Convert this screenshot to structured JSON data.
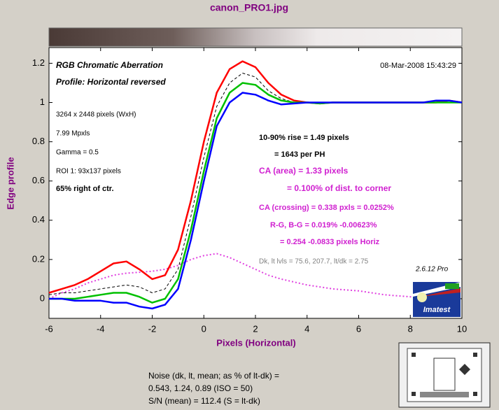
{
  "chart_data": {
    "type": "line",
    "title": "canon_PRO1.jpg",
    "xlabel": "Pixels (Horizontal)",
    "ylabel": "Edge profile",
    "xlim": [
      -6,
      10
    ],
    "ylim": [
      -0.1,
      1.28
    ],
    "xticks": [
      -6,
      -4,
      -2,
      0,
      2,
      4,
      6,
      8,
      10
    ],
    "yticks": [
      0,
      0.2,
      0.4,
      0.6,
      0.8,
      1,
      1.2
    ],
    "x": [
      -6,
      -5.5,
      -5,
      -4.5,
      -4,
      -3.5,
      -3,
      -2.5,
      -2,
      -1.5,
      -1,
      -0.5,
      0,
      0.5,
      1,
      1.5,
      2,
      2.5,
      3,
      3.5,
      4,
      4.5,
      5,
      5.5,
      6,
      6.5,
      7,
      7.5,
      8,
      8.5,
      9,
      9.5,
      10
    ],
    "series": [
      {
        "color": "#ff0000",
        "style": "solid",
        "values": [
          0.03,
          0.05,
          0.07,
          0.1,
          0.14,
          0.18,
          0.19,
          0.15,
          0.1,
          0.12,
          0.25,
          0.5,
          0.8,
          1.05,
          1.17,
          1.21,
          1.18,
          1.1,
          1.04,
          1.01,
          1.0,
          0.995,
          1.0,
          1.0,
          1.0,
          1.0,
          1.0,
          1.0,
          1.0,
          1.0,
          1.0,
          1.01,
          1.0
        ]
      },
      {
        "color": "#00c000",
        "style": "solid",
        "values": [
          0,
          0,
          0,
          0.01,
          0.02,
          0.03,
          0.03,
          0.01,
          -0.02,
          0,
          0.1,
          0.35,
          0.65,
          0.92,
          1.05,
          1.1,
          1.09,
          1.04,
          1.01,
          1.0,
          1.0,
          0.995,
          1.0,
          1.0,
          1.0,
          1.0,
          1.0,
          1.0,
          1.0,
          1.0,
          1.0,
          1.0,
          1.0
        ]
      },
      {
        "color": "#0000ff",
        "style": "solid",
        "values": [
          0,
          0,
          -0.01,
          -0.01,
          -0.01,
          -0.02,
          -0.02,
          -0.04,
          -0.05,
          -0.03,
          0.05,
          0.3,
          0.6,
          0.88,
          1.0,
          1.05,
          1.04,
          1.01,
          0.99,
          0.995,
          1.0,
          1.0,
          1.0,
          1.0,
          1.0,
          1.0,
          1.0,
          1.0,
          1.0,
          1.0,
          1.01,
          1.01,
          1.0
        ]
      },
      {
        "color": "#000000",
        "style": "dashed",
        "values": [
          0.02,
          0.03,
          0.03,
          0.04,
          0.05,
          0.06,
          0.07,
          0.06,
          0.03,
          0.05,
          0.15,
          0.42,
          0.72,
          0.98,
          1.1,
          1.15,
          1.13,
          1.06,
          1.02,
          1.0,
          1.0,
          1.0,
          1.0,
          1.0,
          1.0,
          1.0,
          1.0,
          1.0,
          1.0,
          1.0,
          1.0,
          1.0,
          1.0
        ]
      },
      {
        "color": "#e040e0",
        "style": "dotted",
        "values": [
          0,
          0.03,
          0.05,
          0.08,
          0.1,
          0.12,
          0.13,
          0.135,
          0.14,
          0.15,
          0.17,
          0.2,
          0.22,
          0.23,
          0.21,
          0.18,
          0.15,
          0.12,
          0.1,
          0.085,
          0.07,
          0.06,
          0.05,
          0.045,
          0.04,
          0.03,
          0.02,
          0.015,
          0.01,
          0.005,
          0,
          0,
          -0.01
        ]
      }
    ],
    "annotations": [
      "RGB Chromatic Aberration",
      "Profile: Horizontal reversed",
      "08-Mar-2008 15:43:29",
      "3264 x 2448 pixels (WxH)",
      "7.99 Mpxls",
      "Gamma = 0.5",
      "ROI 1: 93x137 pixels",
      "65% right of ctr.",
      "10-90% rise = 1.49 pixels",
      "= 1643 per PH",
      "CA (area) = 1.33 pixels",
      "= 0.100% of dist. to corner",
      "CA (crossing) = 0.338 pxls = 0.0252%",
      "R-G, B-G = 0.019%  -0.00623%",
      "= 0.254  -0.0833 pixels Horiz",
      "Dk, lt lvls = 75.6, 207.7,  lt/dk = 2.75",
      "2.6.12  Pro",
      "Imatest"
    ],
    "notes": [
      "Noise (dk, lt, mean; as % of lt-dk) =",
      "0.543,  1.24,  0.89  (ISO =  50)",
      "S/N (mean) = 112.4  (S = lt-dk)"
    ]
  }
}
